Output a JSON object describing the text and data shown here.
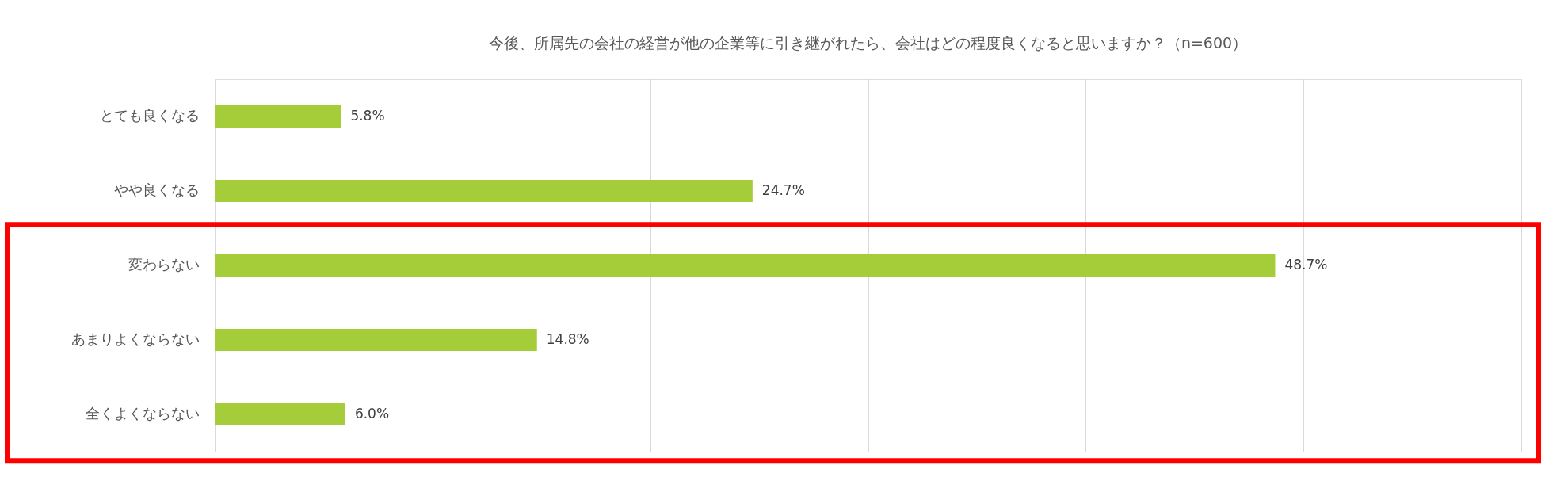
{
  "chart_data": {
    "type": "bar",
    "orientation": "horizontal",
    "title": "今後、所属先の会社の経営が他の企業等に引き継がれたら、会社はどの程度良くなると思いますか？（n=600）",
    "categories": [
      "とても良くなる",
      "やや良くなる",
      "変わらない",
      "あまりよくならない",
      "全くよくならない"
    ],
    "values": [
      5.8,
      24.7,
      48.7,
      14.8,
      6.0
    ],
    "value_labels": [
      "5.8%",
      "24.7%",
      "48.7%",
      "14.8%",
      "6.0%"
    ],
    "color": "#a5cd39",
    "xlim": [
      0,
      60
    ],
    "xticks": [
      {
        "value": 0,
        "label": null
      },
      {
        "value": 10,
        "label": null
      },
      {
        "value": 20,
        "label": null
      },
      {
        "value": 30,
        "label": null
      },
      {
        "value": 40,
        "label": null
      },
      {
        "value": 50,
        "label": null
      },
      {
        "value": 60,
        "label": null
      }
    ],
    "tick_labels": "y",
    "grid": "x"
  }
}
